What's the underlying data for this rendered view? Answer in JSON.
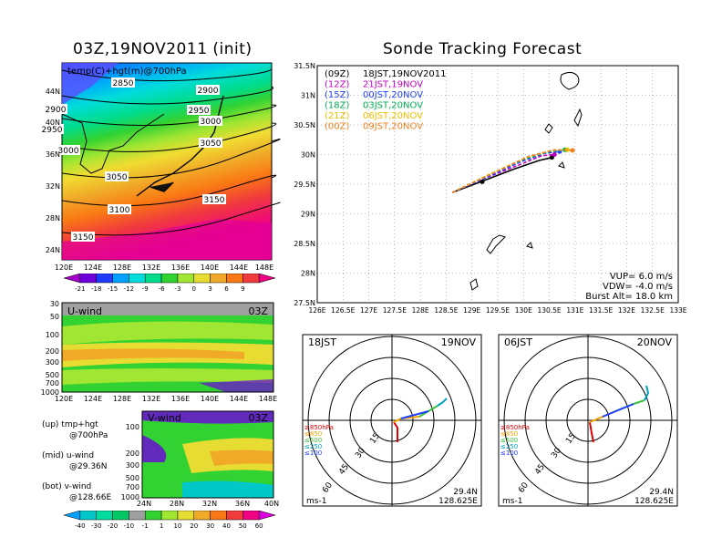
{
  "left_title": "03Z,19NOV2011 (init)",
  "right_title": "Sonde Tracking Forecast",
  "map_panel": {
    "label": "temp(C)+hgt(m)@700hPa",
    "contours": [
      "2850",
      "2900",
      "2900",
      "2950",
      "2950",
      "3000",
      "3000",
      "3050",
      "3050",
      "3100",
      "3150",
      "3150"
    ],
    "lat_ticks": [
      "44N",
      "40N",
      "36N",
      "32N",
      "28N",
      "24N"
    ],
    "lon_ticks": [
      "120E",
      "124E",
      "128E",
      "132E",
      "136E",
      "140E",
      "144E",
      "148E"
    ]
  },
  "temp_colorbar": {
    "labels": [
      "-21",
      "-18",
      "-15",
      "-12",
      "-9",
      "-6",
      "-3",
      "0",
      "3",
      "6",
      "9"
    ],
    "colors": [
      "#a000c8",
      "#6e00dc",
      "#1e3cff",
      "#00a0ff",
      "#00dcdc",
      "#00dc8c",
      "#32d232",
      "#a0e632",
      "#e6dc32",
      "#f0aa28",
      "#fa7814",
      "#f03c3c",
      "#f00082"
    ]
  },
  "u_panel": {
    "label": "U-wind",
    "time": "03Z",
    "p_ticks": [
      "30",
      "50",
      "100",
      "200",
      "300",
      "500",
      "700",
      "1000"
    ],
    "x_ticks": [
      "120E",
      "124E",
      "128E",
      "132E",
      "136E",
      "140E",
      "144E",
      "148E"
    ]
  },
  "v_panel": {
    "label": "V-wind",
    "time": "03Z",
    "p_ticks": [
      "100",
      "200",
      "300",
      "500",
      "700",
      "1000"
    ],
    "x_ticks": [
      "24N",
      "28N",
      "32N",
      "36N",
      "40N"
    ]
  },
  "side_notes": {
    "up": "(up) tmp+hgt",
    "up2": "@700hPa",
    "mid": "(mid) u-wind",
    "mid2": "@29.36N",
    "bot": "(bot) v-wind",
    "bot2": "@128.66E"
  },
  "wind_colorbar": {
    "labels": [
      "-40",
      "-30",
      "-20",
      "-10",
      "-1",
      "1",
      "10",
      "20",
      "30",
      "40",
      "50",
      "60"
    ],
    "colors": [
      "#00a0ff",
      "#00c8c8",
      "#00dca0",
      "#00c864",
      "#a0a0a0",
      "#32d232",
      "#a0e632",
      "#e6dc32",
      "#f0aa28",
      "#fa7814",
      "#f03c3c",
      "#f00082",
      "#dc00dc"
    ]
  },
  "track_panel": {
    "legend": [
      {
        "code": "(09Z)",
        "text": "18JST,19NOV2011",
        "color": "#000000"
      },
      {
        "code": "(12Z)",
        "text": "21JST,19NOV",
        "color": "#c000c0"
      },
      {
        "code": "(15Z)",
        "text": "00JST,20NOV",
        "color": "#2040ff"
      },
      {
        "code": "(18Z)",
        "text": "03JST,20NOV",
        "color": "#00b050"
      },
      {
        "code": "(21Z)",
        "text": "06JST,20NOV",
        "color": "#f0c000"
      },
      {
        "code": "(00Z)",
        "text": "09JST,20NOV",
        "color": "#f08020"
      }
    ],
    "lat_ticks": [
      "31.5N",
      "31N",
      "30.5N",
      "30N",
      "29.5N",
      "29N",
      "28.5N",
      "28N",
      "27.5N"
    ],
    "lon_ticks": [
      "126E",
      "126.5E",
      "127E",
      "127.5E",
      "128E",
      "128.5E",
      "129E",
      "129.5E",
      "130E",
      "130.5E",
      "131E",
      "131.5E",
      "132E",
      "132.5E",
      "133E"
    ],
    "params": [
      "VUP= 6.0 m/s",
      "VDW= -4.0 m/s",
      "Burst Alt= 18.0 km"
    ]
  },
  "polar_left": {
    "time": "18JST",
    "date": "19NOV",
    "ring_labels": [
      "15",
      "30",
      "45",
      "60"
    ],
    "levels": [
      "≥850hPa",
      "≤850",
      "≤500",
      "≤250",
      "≤100"
    ],
    "unit": "ms-1",
    "lat": "29.4N",
    "lon": "128.625E"
  },
  "polar_right": {
    "time": "06JST",
    "date": "20NOV",
    "ring_labels": [
      "15",
      "30",
      "45",
      "60"
    ],
    "levels": [
      "≥850hPa",
      "≤850",
      "≤500",
      "≤250",
      "≤100"
    ],
    "unit": "ms-1",
    "lat": "29.4N",
    "lon": "128.625E"
  },
  "level_colors": [
    "#e00000",
    "#f0a000",
    "#40c040",
    "#00a0c0",
    "#2040ff"
  ],
  "chart_data": {
    "type": "line",
    "title": "Sonde Tracking Forecast",
    "xlabel": "",
    "ylabel": "",
    "xlim": [
      126,
      133
    ],
    "ylim": [
      27.5,
      31.5
    ],
    "series": [
      {
        "name": "(09Z) 18JST,19NOV2011",
        "x": [
          128.62,
          129.2,
          129.8,
          130.3,
          130.55
        ],
        "y": [
          29.36,
          29.55,
          29.75,
          29.9,
          29.95
        ]
      },
      {
        "name": "(12Z) 21JST,19NOV",
        "x": [
          128.62,
          129.25,
          129.9,
          130.35,
          130.6
        ],
        "y": [
          29.36,
          29.6,
          29.82,
          29.98,
          30.0
        ]
      },
      {
        "name": "(15Z) 00JST,20NOV",
        "x": [
          128.62,
          129.3,
          129.95,
          130.4,
          130.7
        ],
        "y": [
          29.36,
          29.62,
          29.88,
          30.02,
          30.05
        ]
      },
      {
        "name": "(18Z) 03JST,20NOV",
        "x": [
          128.62,
          129.3,
          130.0,
          130.5,
          130.8
        ],
        "y": [
          29.36,
          29.65,
          29.92,
          30.05,
          30.08
        ]
      },
      {
        "name": "(21Z) 06JST,20NOV",
        "x": [
          128.62,
          129.35,
          130.05,
          130.55,
          130.85
        ],
        "y": [
          29.36,
          29.67,
          29.95,
          30.07,
          30.08
        ]
      },
      {
        "name": "(00Z) 09JST,20NOV",
        "x": [
          128.62,
          129.4,
          130.1,
          130.6,
          130.95
        ],
        "y": [
          29.36,
          29.68,
          29.97,
          30.08,
          30.07
        ]
      }
    ]
  }
}
